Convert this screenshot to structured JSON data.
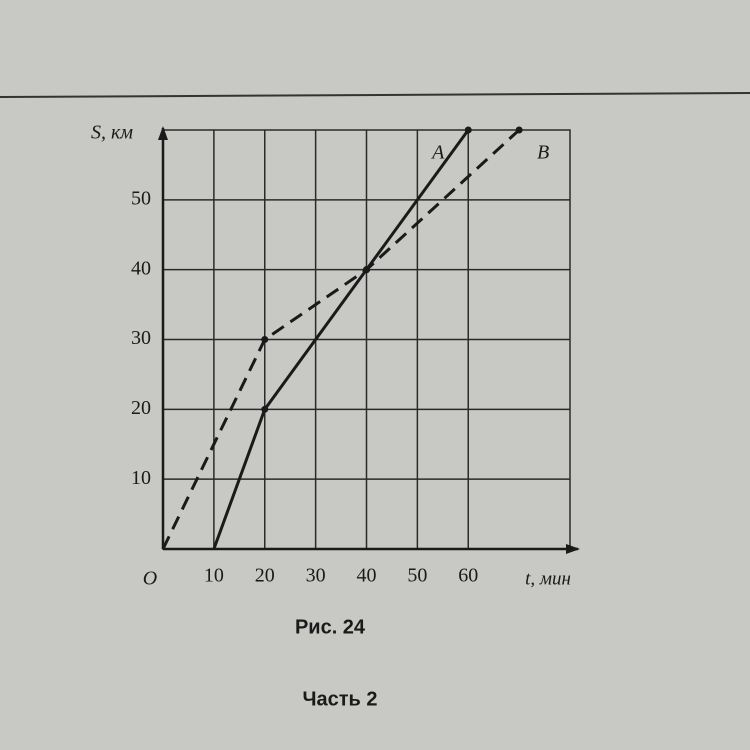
{
  "chart_data": {
    "type": "line",
    "x_label": "t, мин",
    "y_label": "S, км",
    "origin_label": "O",
    "series": [
      {
        "name": "A",
        "color": "#1a1a1a",
        "dash": false,
        "x": [
          10,
          20,
          40,
          60
        ],
        "values": [
          0,
          20,
          40,
          60
        ]
      },
      {
        "name": "B",
        "color": "#1a1a1a",
        "dash": true,
        "x": [
          0,
          20,
          40,
          70
        ],
        "values": [
          0,
          30,
          40,
          60
        ]
      }
    ],
    "xlim": [
      0,
      80
    ],
    "ylim": [
      0,
      60
    ],
    "xticks": [
      10,
      20,
      30,
      40,
      50,
      60
    ],
    "yticks": [
      10,
      20,
      30,
      40,
      50
    ],
    "grid": true,
    "caption": "Рис. 24",
    "section": "Часть 2"
  }
}
